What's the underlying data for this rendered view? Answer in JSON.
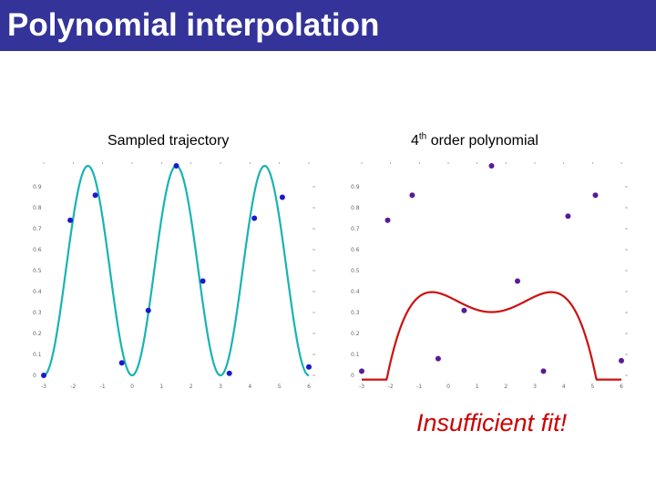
{
  "header": {
    "title": "Polynomial interpolation"
  },
  "captions": {
    "left": "Sampled trajectory",
    "right_sup": "th",
    "right_prefix": "4",
    "right_suffix": " order polynomial"
  },
  "note": "Insufficient fit!",
  "colors": {
    "title_bg": "#333399",
    "sine_curve": "#19b3b3",
    "poly_curve": "#cc1111",
    "left_points": "#1a1acc",
    "right_points": "#5a1a99",
    "note": "#cc0000"
  },
  "chart_data": [
    {
      "type": "line",
      "x_ticks": [
        "-3",
        "-2",
        "-1",
        "0",
        "1",
        "2",
        "3",
        "4",
        "5",
        "6"
      ],
      "y_ticks": [
        "0",
        "0.1",
        "0.2",
        "0.3",
        "0.4",
        "0.5",
        "0.6",
        "0.7",
        "0.8",
        "0.9"
      ],
      "xlim": [
        -3,
        6
      ],
      "ylim": [
        0,
        1
      ],
      "curve": "sin",
      "points": [
        [
          -3.0,
          0.0
        ],
        [
          -2.1,
          0.74
        ],
        [
          -1.25,
          0.86
        ],
        [
          -0.35,
          0.06
        ],
        [
          0.55,
          0.31
        ],
        [
          1.5,
          1.0
        ],
        [
          2.4,
          0.45
        ],
        [
          3.3,
          0.01
        ],
        [
          4.15,
          0.75
        ],
        [
          5.1,
          0.85
        ],
        [
          6.0,
          0.04
        ]
      ]
    },
    {
      "type": "line",
      "x_ticks": [
        "-3",
        "-2",
        "-1",
        "0",
        "1",
        "2",
        "3",
        "4",
        "5",
        "6"
      ],
      "y_ticks": [
        "0",
        "0.1",
        "0.2",
        "0.3",
        "0.4",
        "0.5",
        "0.6",
        "0.7",
        "0.8",
        "0.9"
      ],
      "xlim": [
        -3,
        6
      ],
      "ylim": [
        0,
        1
      ],
      "curve": "poly4",
      "points": [
        [
          -3.0,
          0.02
        ],
        [
          -2.1,
          0.74
        ],
        [
          -1.25,
          0.86
        ],
        [
          -0.35,
          0.08
        ],
        [
          0.55,
          0.31
        ],
        [
          1.5,
          1.0
        ],
        [
          2.4,
          0.45
        ],
        [
          3.3,
          0.02
        ],
        [
          4.15,
          0.76
        ],
        [
          5.1,
          0.86
        ],
        [
          6.0,
          0.07
        ]
      ]
    }
  ]
}
